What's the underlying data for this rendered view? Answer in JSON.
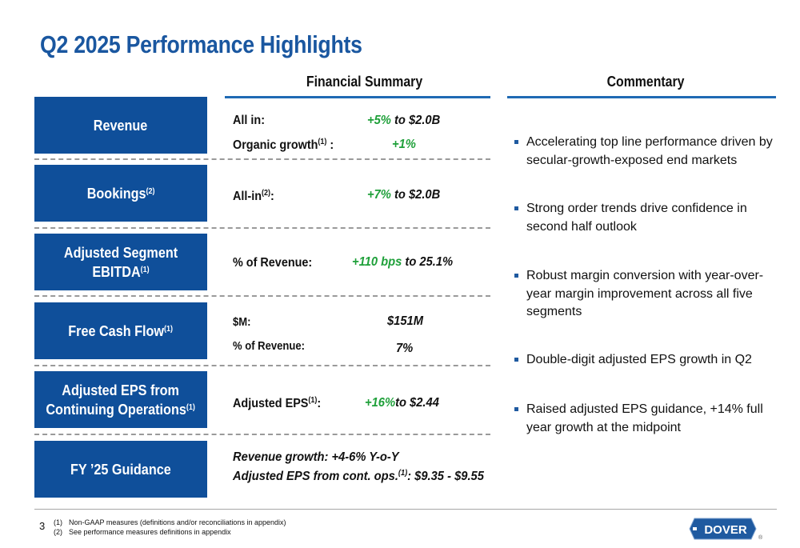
{
  "page": {
    "title": "Q2 2025 Performance Highlights",
    "number": "3"
  },
  "headers": {
    "financial_summary": "Financial Summary",
    "commentary": "Commentary"
  },
  "rows": {
    "revenue": {
      "label": "Revenue",
      "line1_label": "All in:",
      "line1_value_green": "+5%",
      "line1_value_rest": "to $2.0B",
      "line2_label": "Organic growth",
      "line2_sup": "(1)",
      "line2_colon": " :",
      "line2_value_green": "+1%"
    },
    "bookings": {
      "label": "Bookings",
      "label_sup": "(2)",
      "line1_label": "All-in",
      "line1_sup": "(2)",
      "line1_colon": ":",
      "line1_value_green": "+7%",
      "line1_value_rest": "to $2.0B"
    },
    "ebitda": {
      "label_line1": "Adjusted Segment",
      "label_line2": "EBITDA",
      "label_sup": "(1)",
      "line1_label": "% of Revenue:",
      "line1_value_green": "+110 bps",
      "line1_value_rest": "to 25.1%"
    },
    "fcf": {
      "label": "Free Cash Flow",
      "label_sup": "(1)",
      "line1_label": "$M:",
      "line1_value": "$151M",
      "line2_label": "% of Revenue:",
      "line2_value": "7%"
    },
    "eps": {
      "label_line1": "Adjusted EPS from",
      "label_line2": "Continuing Operations",
      "label_sup": "(1)",
      "line1_label": "Adjusted EPS",
      "line1_sup": "(1)",
      "line1_colon": ":",
      "line1_value_green": "+16%",
      "line1_value_rest": "to $2.44"
    },
    "guidance": {
      "label": "FY ’25 Guidance",
      "line1": "Revenue growth: +4-6% Y-o-Y",
      "line2_pre": "Adjusted EPS from cont. ops.",
      "line2_sup": "(1)",
      "line2_post": ": $9.35 - $9.55"
    }
  },
  "commentary": [
    "Accelerating top line performance driven by secular-growth-exposed end markets",
    "Strong order trends drive confidence in second half outlook",
    "Robust margin conversion with year-over-year margin improvement across all five segments",
    "Double-digit adjusted EPS growth in Q2",
    "Raised adjusted EPS guidance, +14% full year growth at the midpoint"
  ],
  "footnotes": [
    {
      "num": "(1)",
      "text": "Non-GAAP measures (definitions and/or reconciliations in appendix)"
    },
    {
      "num": "(2)",
      "text": "See performance measures definitions in appendix"
    }
  ],
  "logo": {
    "text": "DOVER",
    "mark": "®",
    "icon": "dover-logo-icon"
  },
  "colors": {
    "title_blue": "#1a57a0",
    "box_blue": "#0f4f9a",
    "rule_blue": "#1f6ab4",
    "positive_green": "#1fa03a"
  }
}
